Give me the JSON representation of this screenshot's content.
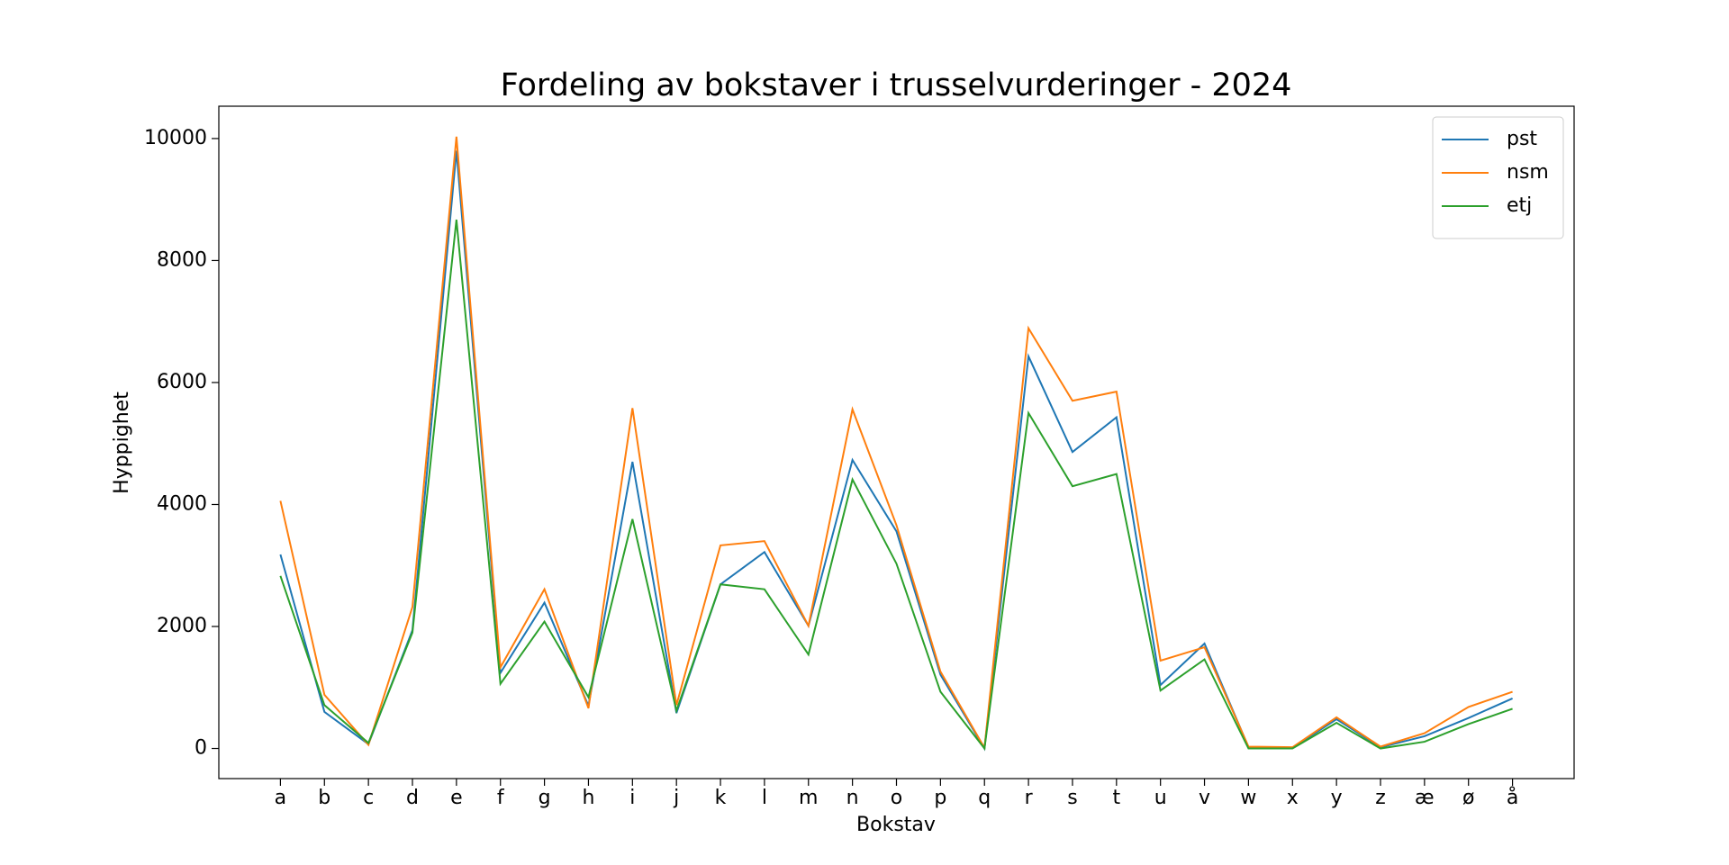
{
  "chart_data": {
    "type": "line",
    "title": "Fordeling av bokstaver i trusselvurderinger - 2024",
    "xlabel": "Bokstav",
    "ylabel": "Hyppighet",
    "categories": [
      "a",
      "b",
      "c",
      "d",
      "e",
      "f",
      "g",
      "h",
      "i",
      "j",
      "k",
      "l",
      "m",
      "n",
      "o",
      "p",
      "q",
      "r",
      "s",
      "t",
      "u",
      "v",
      "w",
      "x",
      "y",
      "z",
      "æ",
      "ø",
      "å"
    ],
    "series": [
      {
        "name": "pst",
        "color": "#1f77b4",
        "values": [
          3180,
          600,
          70,
          1940,
          9800,
          1240,
          2390,
          700,
          4700,
          580,
          2690,
          3220,
          2010,
          4730,
          3560,
          1210,
          0,
          6430,
          4860,
          5430,
          1040,
          1720,
          20,
          10,
          480,
          20,
          200,
          500,
          820
        ]
      },
      {
        "name": "nsm",
        "color": "#ff7f0e",
        "values": [
          4060,
          880,
          60,
          2320,
          10030,
          1330,
          2610,
          660,
          5580,
          710,
          3330,
          3400,
          2010,
          5560,
          3660,
          1260,
          10,
          6890,
          5700,
          5850,
          1440,
          1660,
          30,
          20,
          510,
          30,
          250,
          680,
          930
        ]
      },
      {
        "name": "etj",
        "color": "#2ca02c",
        "values": [
          2830,
          710,
          90,
          1900,
          8670,
          1060,
          2080,
          840,
          3760,
          620,
          2690,
          2610,
          1540,
          4410,
          3030,
          930,
          0,
          5500,
          4300,
          4500,
          950,
          1460,
          0,
          0,
          420,
          0,
          110,
          400,
          650
        ]
      }
    ],
    "ylim": [
      -494,
      10530
    ],
    "yticks": [
      0,
      2000,
      4000,
      6000,
      8000,
      10000
    ],
    "legend": "upper right"
  }
}
